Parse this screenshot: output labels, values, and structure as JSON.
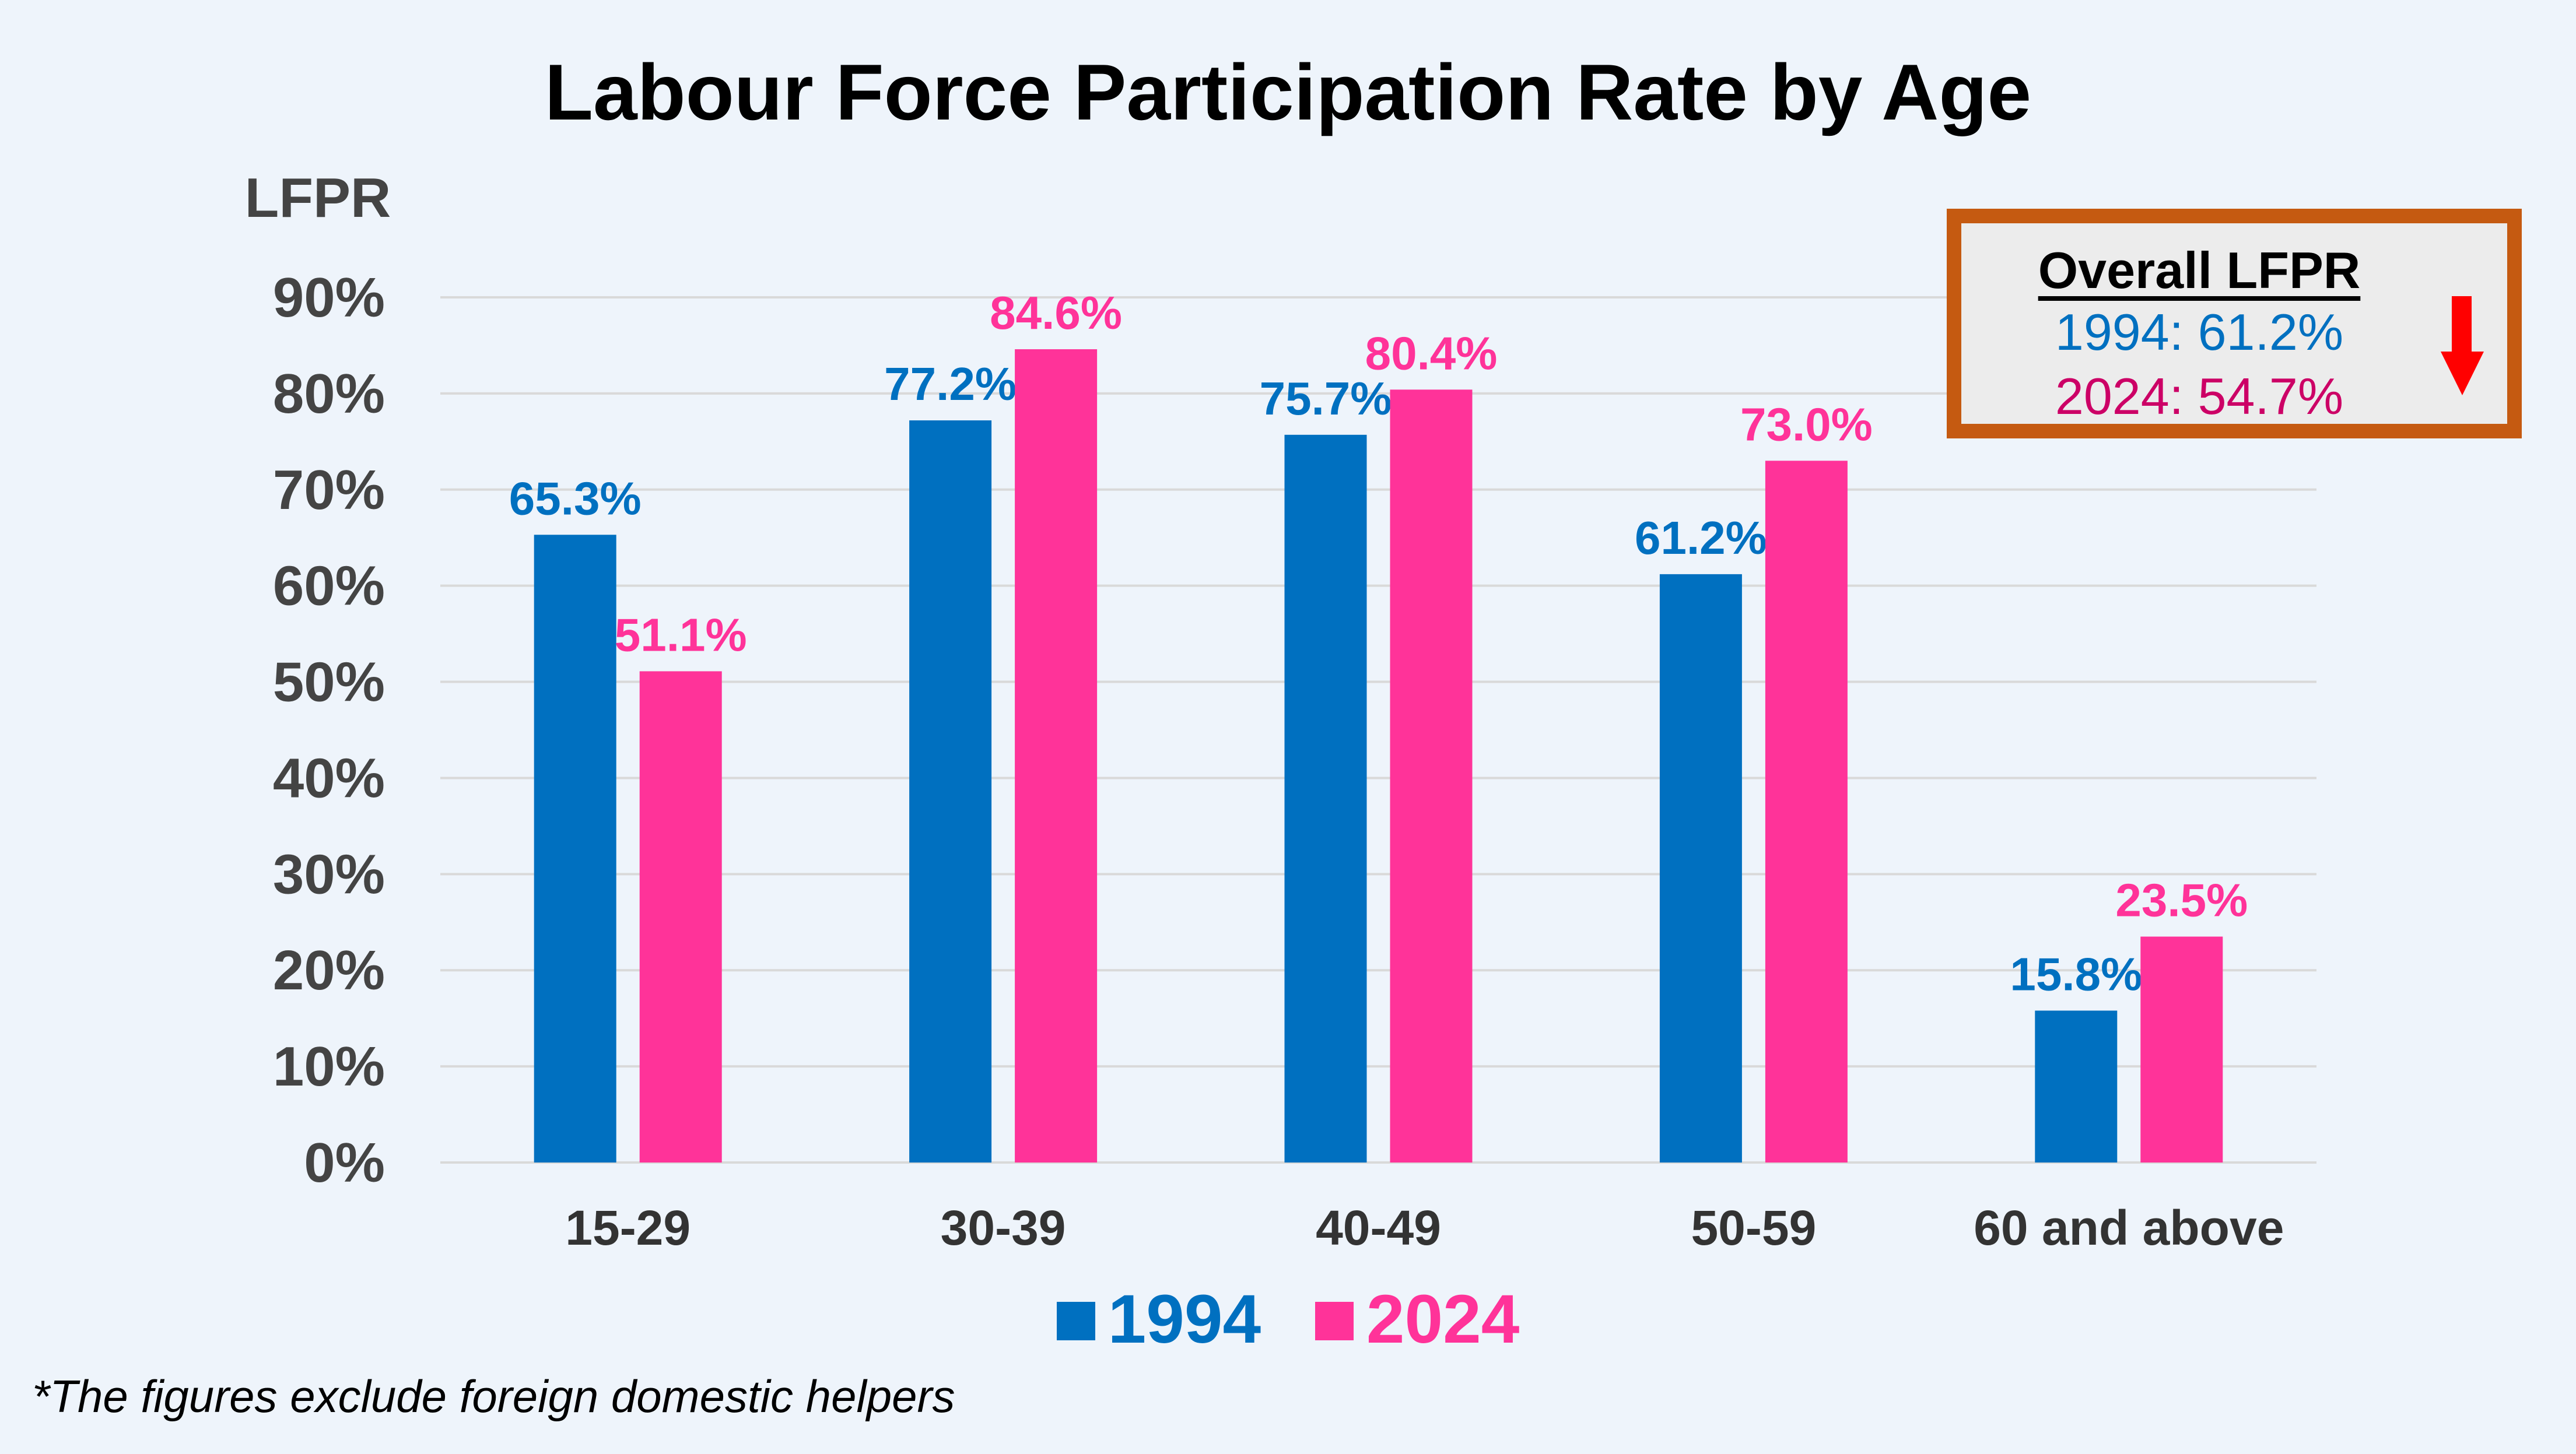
{
  "chart_data": {
    "type": "bar",
    "title": "Labour Force Participation Rate by Age",
    "ylabel": "LFPR",
    "xlabel": "",
    "ylim": [
      0,
      90
    ],
    "yticks": [
      "0%",
      "10%",
      "20%",
      "30%",
      "40%",
      "50%",
      "60%",
      "70%",
      "80%",
      "90%"
    ],
    "grid": true,
    "legend_position": "bottom",
    "categories": [
      "15-29",
      "30-39",
      "40-49",
      "50-59",
      "60 and above"
    ],
    "series": [
      {
        "name": "1994",
        "color": "#0070C0",
        "values": [
          65.3,
          77.2,
          75.7,
          61.2,
          15.8
        ],
        "labels": [
          "65.3%",
          "77.2%",
          "75.7%",
          "61.2%",
          "15.8%"
        ]
      },
      {
        "name": "2024",
        "color": "#FF3399",
        "values": [
          51.1,
          84.6,
          80.4,
          73.0,
          23.5
        ],
        "labels": [
          "51.1%",
          "84.6%",
          "80.4%",
          "73.0%",
          "23.5%"
        ]
      }
    ]
  },
  "overall_box": {
    "heading": "Overall LFPR",
    "line_1994": "1994: 61.2%",
    "line_2024": "2024: 54.7%",
    "color_1994": "#0070C0",
    "color_2024": "#CC0066",
    "border_color": "#C55A11",
    "icon": "down-arrow-icon"
  },
  "footnote": "*The figures exclude foreign domestic helpers"
}
